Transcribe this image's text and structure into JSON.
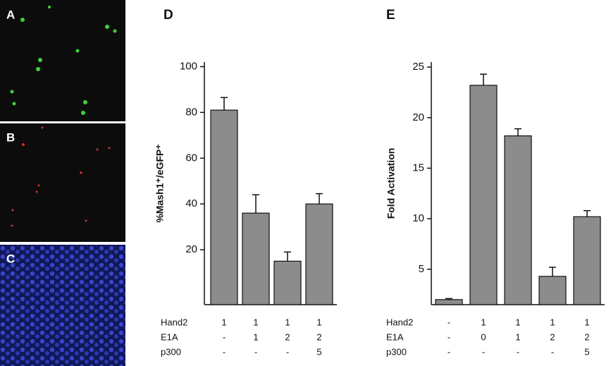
{
  "image_panel_labels": [
    "A",
    "B",
    "C"
  ],
  "chart_data": [
    {
      "type": "bar",
      "panel_label": "D",
      "y_label": "%Mash1⁺/eGFP⁺",
      "color": "#8c8c8c",
      "values": [
        81,
        36,
        15,
        40
      ],
      "errors": [
        5.5,
        8,
        4,
        4.5
      ],
      "ylim": [
        -4,
        102
      ],
      "yticks": [
        20,
        40,
        60,
        80,
        100
      ],
      "conditions": [
        {
          "name": "Hand2",
          "values": [
            "1",
            "1",
            "1",
            "1"
          ]
        },
        {
          "name": "E1A",
          "values": [
            "-",
            "1",
            "2",
            "2"
          ]
        },
        {
          "name": "p300",
          "values": [
            "-",
            "-",
            "-",
            "5"
          ]
        }
      ]
    },
    {
      "type": "bar",
      "panel_label": "E",
      "y_label": "Fold Activation",
      "color": "#8c8c8c",
      "values": [
        2.0,
        23.2,
        18.2,
        4.3,
        10.2
      ],
      "errors": [
        0.1,
        1.1,
        0.7,
        0.9,
        0.6
      ],
      "ylim": [
        1.5,
        25.5
      ],
      "yticks": [
        5,
        10,
        15,
        20,
        25
      ],
      "conditions": [
        {
          "name": "Hand2",
          "values": [
            "-",
            "1",
            "1",
            "1",
            "1"
          ]
        },
        {
          "name": "E1A",
          "values": [
            "-",
            "0",
            "1",
            "2",
            "2"
          ]
        },
        {
          "name": "p300",
          "values": [
            "-",
            "-",
            "-",
            "-",
            "5"
          ]
        }
      ]
    }
  ]
}
